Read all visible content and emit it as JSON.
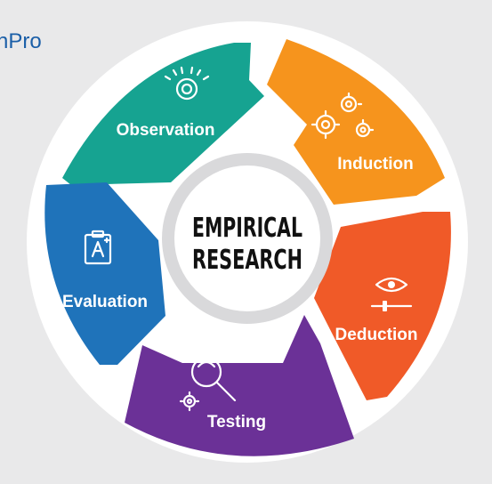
{
  "brand": {
    "text": "nPro"
  },
  "center": {
    "line1": "EMPIRICAL",
    "line2": "RESEARCH"
  },
  "segments": [
    {
      "label": "Observation",
      "icon": "eye-icon",
      "color": "#16a391"
    },
    {
      "label": "Induction",
      "icon": "gears-icon",
      "color": "#f6941d"
    },
    {
      "label": "Deduction",
      "icon": "eye-slider-icon",
      "color": "#f05a28"
    },
    {
      "label": "Testing",
      "icon": "magnifier-gear-icon",
      "color": "#6b3197"
    },
    {
      "label": "Evaluation",
      "icon": "clipboard-grade-icon",
      "color": "#1f73ba"
    }
  ],
  "colors": {
    "background": "#e9e9ea",
    "ring": "#ffffff",
    "center_ring": "#d9d9db",
    "text_dark": "#111111",
    "brand": "#1b5fa8"
  }
}
